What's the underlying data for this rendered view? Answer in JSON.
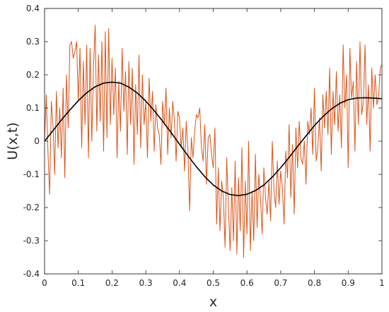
{
  "chart_data": {
    "type": "line",
    "title": "",
    "xlabel": "x",
    "ylabel": "U(x,t)",
    "xlim": [
      0,
      1
    ],
    "ylim": [
      -0.4,
      0.4
    ],
    "xticks": [
      0,
      0.1,
      0.2,
      0.3,
      0.4,
      0.5,
      0.6,
      0.7,
      0.8,
      0.9,
      1
    ],
    "xtick_labels": [
      "0",
      "0.1",
      "0.2",
      "0.3",
      "0.4",
      "0.5",
      "0.6",
      "0.7",
      "0.8",
      "0.9",
      "1"
    ],
    "yticks": [
      -0.4,
      -0.3,
      -0.2,
      -0.1,
      0,
      0.1,
      0.2,
      0.3,
      0.4
    ],
    "ytick_labels": [
      "-0.4",
      "-0.3",
      "-0.2",
      "-0.1",
      "0",
      "0.1",
      "0.2",
      "0.3",
      "0.4"
    ],
    "grid": false,
    "legend": "none",
    "series": [
      {
        "color": "#d95319",
        "x": [
          0,
          0.005,
          0.01,
          0.015,
          0.02,
          0.025,
          0.03,
          0.035,
          0.04,
          0.045,
          0.05,
          0.055,
          0.06,
          0.065,
          0.07,
          0.075,
          0.08,
          0.085,
          0.09,
          0.095,
          0.1,
          0.105,
          0.11,
          0.115,
          0.12,
          0.125,
          0.13,
          0.135,
          0.14,
          0.145,
          0.15,
          0.155,
          0.16,
          0.165,
          0.17,
          0.175,
          0.18,
          0.185,
          0.19,
          0.195,
          0.2,
          0.205,
          0.21,
          0.215,
          0.22,
          0.225,
          0.23,
          0.235,
          0.24,
          0.245,
          0.25,
          0.255,
          0.26,
          0.265,
          0.27,
          0.275,
          0.28,
          0.285,
          0.29,
          0.295,
          0.3,
          0.305,
          0.31,
          0.315,
          0.32,
          0.325,
          0.33,
          0.335,
          0.34,
          0.345,
          0.35,
          0.355,
          0.36,
          0.365,
          0.37,
          0.375,
          0.38,
          0.385,
          0.39,
          0.395,
          0.4,
          0.405,
          0.41,
          0.415,
          0.42,
          0.425,
          0.43,
          0.435,
          0.44,
          0.445,
          0.45,
          0.455,
          0.46,
          0.465,
          0.47,
          0.475,
          0.48,
          0.485,
          0.49,
          0.495,
          0.5,
          0.505,
          0.51,
          0.515,
          0.52,
          0.525,
          0.53,
          0.535,
          0.54,
          0.545,
          0.55,
          0.555,
          0.56,
          0.565,
          0.57,
          0.575,
          0.58,
          0.585,
          0.59,
          0.595,
          0.6,
          0.605,
          0.61,
          0.615,
          0.62,
          0.625,
          0.63,
          0.635,
          0.64,
          0.645,
          0.65,
          0.655,
          0.66,
          0.665,
          0.67,
          0.675,
          0.68,
          0.685,
          0.69,
          0.695,
          0.7,
          0.705,
          0.71,
          0.715,
          0.72,
          0.725,
          0.73,
          0.735,
          0.74,
          0.745,
          0.75,
          0.755,
          0.76,
          0.765,
          0.77,
          0.775,
          0.78,
          0.785,
          0.79,
          0.795,
          0.8,
          0.805,
          0.81,
          0.815,
          0.82,
          0.825,
          0.83,
          0.835,
          0.84,
          0.845,
          0.85,
          0.855,
          0.86,
          0.865,
          0.87,
          0.875,
          0.88,
          0.885,
          0.89,
          0.895,
          0.9,
          0.905,
          0.91,
          0.915,
          0.92,
          0.925,
          0.93,
          0.935,
          0.94,
          0.945,
          0.95,
          0.955,
          0.96,
          0.965,
          0.97,
          0.975,
          0.98,
          0.985,
          0.99,
          0.995,
          1
        ],
        "y": [
          0.0,
          0.14,
          -0.03,
          -0.16,
          0.12,
          0.05,
          -0.1,
          0.15,
          -0.02,
          0.1,
          -0.05,
          0.16,
          -0.11,
          0.2,
          0.04,
          0.29,
          0.3,
          0.25,
          0.27,
          0.3,
          0.12,
          0.28,
          -0.02,
          0.24,
          0.05,
          0.29,
          -0.05,
          0.28,
          0.0,
          0.22,
          0.35,
          0.03,
          0.26,
          0.06,
          0.3,
          -0.03,
          0.33,
          0.01,
          0.34,
          0.05,
          0.25,
          0.08,
          0.22,
          -0.05,
          0.18,
          0.03,
          0.28,
          0.09,
          0.21,
          -0.04,
          0.24,
          0.05,
          0.22,
          -0.07,
          0.17,
          0.02,
          0.26,
          -0.02,
          0.2,
          0.05,
          0.12,
          -0.05,
          0.19,
          0.06,
          0.15,
          -0.03,
          0.11,
          0.04,
          0.02,
          -0.07,
          0.12,
          0.05,
          0.16,
          -0.04,
          0.1,
          0.01,
          0.12,
          0.06,
          -0.06,
          0.09,
          0.07,
          -0.02,
          0.04,
          -0.09,
          0.06,
          -0.03,
          -0.21,
          0.01,
          -0.05,
          0.03,
          0.08,
          0.07,
          0.1,
          -0.02,
          -0.06,
          0.05,
          -0.13,
          0.01,
          0.02,
          -0.04,
          -0.08,
          0.04,
          -0.25,
          -0.08,
          -0.27,
          -0.12,
          -0.17,
          -0.32,
          -0.05,
          -0.2,
          -0.33,
          -0.14,
          -0.3,
          -0.06,
          -0.34,
          -0.11,
          -0.27,
          -0.02,
          -0.35,
          -0.12,
          -0.28,
          0.0,
          -0.33,
          -0.15,
          -0.3,
          -0.04,
          -0.26,
          -0.1,
          -0.17,
          -0.28,
          -0.08,
          -0.17,
          -0.22,
          -0.12,
          -0.24,
          0.0,
          -0.15,
          -0.2,
          -0.06,
          -0.19,
          -0.09,
          -0.14,
          -0.25,
          -0.03,
          -0.11,
          0.05,
          -0.17,
          -0.01,
          -0.22,
          0.04,
          -0.08,
          0.06,
          -0.05,
          -0.07,
          0.0,
          -0.13,
          0.06,
          0.02,
          0.1,
          -0.04,
          0.16,
          -0.06,
          -0.02,
          0.07,
          -0.09,
          0.14,
          0.04,
          0.15,
          0.02,
          0.22,
          -0.04,
          0.15,
          0.05,
          0.21,
          0.03,
          0.14,
          -0.02,
          0.29,
          0.1,
          0.2,
          -0.08,
          0.28,
          0.13,
          0.18,
          -0.03,
          0.24,
          0.05,
          0.3,
          0.08,
          0.12,
          0.29,
          0.05,
          0.17,
          -0.03,
          0.22,
          0.1,
          0.2,
          0.11,
          0.13,
          0.22,
          0.23
        ]
      },
      {
        "color": "#000000",
        "x": [
          0,
          0.025,
          0.05,
          0.075,
          0.1,
          0.125,
          0.15,
          0.175,
          0.2,
          0.225,
          0.25,
          0.275,
          0.3,
          0.325,
          0.35,
          0.375,
          0.4,
          0.425,
          0.45,
          0.475,
          0.5,
          0.525,
          0.55,
          0.575,
          0.6,
          0.625,
          0.65,
          0.675,
          0.7,
          0.725,
          0.75,
          0.775,
          0.8,
          0.825,
          0.85,
          0.875,
          0.9,
          0.925,
          0.95,
          0.975,
          1
        ],
        "y": [
          0.0,
          0.032,
          0.064,
          0.094,
          0.122,
          0.146,
          0.164,
          0.175,
          0.178,
          0.175,
          0.163,
          0.145,
          0.121,
          0.092,
          0.06,
          0.026,
          -0.009,
          -0.044,
          -0.077,
          -0.107,
          -0.132,
          -0.15,
          -0.161,
          -0.164,
          -0.16,
          -0.149,
          -0.132,
          -0.108,
          -0.08,
          -0.049,
          -0.016,
          0.016,
          0.047,
          0.074,
          0.097,
          0.114,
          0.125,
          0.13,
          0.131,
          0.13,
          0.128
        ]
      }
    ]
  }
}
